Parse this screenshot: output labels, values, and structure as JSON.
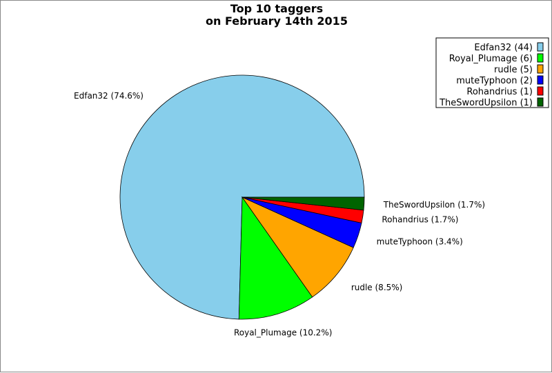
{
  "chart_data": {
    "type": "pie",
    "title": [
      "Top 10 taggers",
      "on February 14th 2015"
    ],
    "slices": [
      {
        "name": "Edfan32",
        "count": 44,
        "percent": "74.6%",
        "color": "#87ceeb"
      },
      {
        "name": "Royal_Plumage",
        "count": 6,
        "percent": "10.2%",
        "color": "#00ff00"
      },
      {
        "name": "rudle",
        "count": 5,
        "percent": "8.5%",
        "color": "#ffa500"
      },
      {
        "name": "muteTyphoon",
        "count": 2,
        "percent": "3.4%",
        "color": "#0000ff"
      },
      {
        "name": "Rohandrius",
        "count": 1,
        "percent": "1.7%",
        "color": "#ff0000"
      },
      {
        "name": "TheSwordUpsilon",
        "count": 1,
        "percent": "1.7%",
        "color": "#006400"
      }
    ],
    "legend": "top-right",
    "start_angle": "east, counterclockwise"
  }
}
